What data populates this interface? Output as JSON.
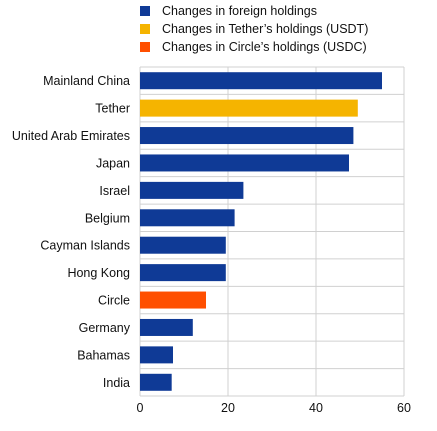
{
  "chart_data": {
    "type": "bar",
    "orientation": "horizontal",
    "categories": [
      "Mainland China",
      "Tether",
      "United Arab Emirates",
      "Japan",
      "Israel",
      "Belgium",
      "Cayman Islands",
      "Hong Kong",
      "Circle",
      "Germany",
      "Bahamas",
      "India"
    ],
    "values": [
      55,
      49.5,
      48.5,
      47.5,
      23.5,
      21.5,
      19.5,
      19.5,
      15,
      12,
      7.5,
      7.2
    ],
    "bar_series": [
      "foreign",
      "tether",
      "foreign",
      "foreign",
      "foreign",
      "foreign",
      "foreign",
      "foreign",
      "circle",
      "foreign",
      "foreign",
      "foreign"
    ],
    "series": [
      {
        "key": "foreign",
        "name": "Changes in foreign holdings",
        "color": "#0f3a96"
      },
      {
        "key": "tether",
        "name": "Changes in Tether’s holdings (USDT)",
        "color": "#f5b400"
      },
      {
        "key": "circle",
        "name": "Changes in Circle’s holdings (USDC)",
        "color": "#ff4f00"
      }
    ],
    "xlim": [
      0,
      60
    ],
    "xticks": [
      0,
      20,
      40,
      60
    ],
    "grid": true,
    "legend_position": "top",
    "title": "",
    "xlabel": "",
    "ylabel": ""
  }
}
